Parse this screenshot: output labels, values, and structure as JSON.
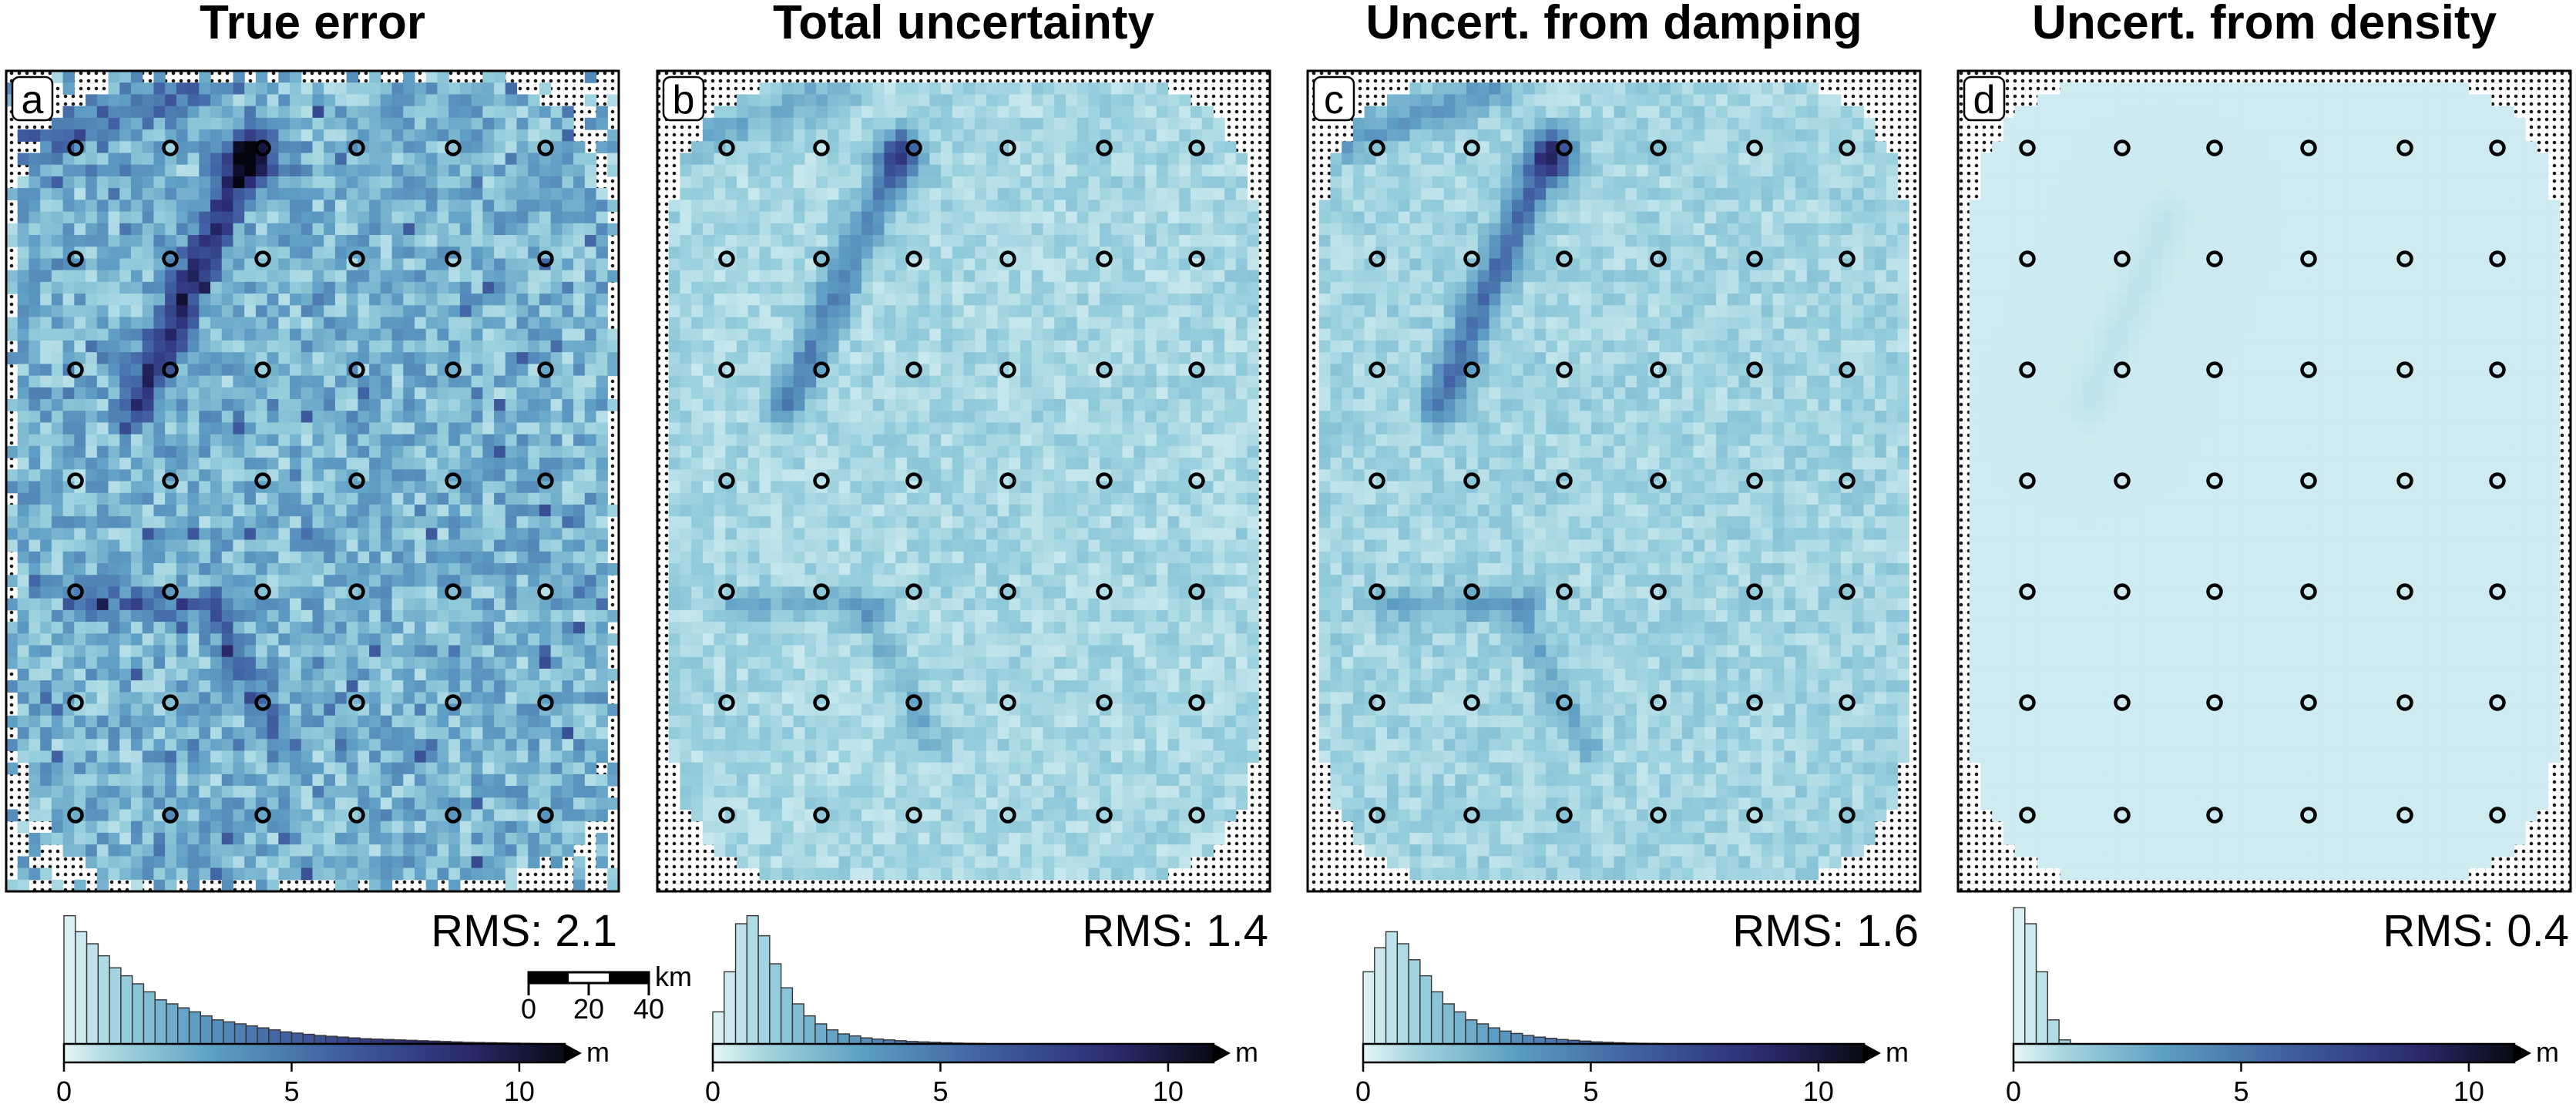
{
  "colors": {
    "map_light": "#e6f6f7",
    "map_mid": "#9fd0dd",
    "map_dark": "#2a2d7c",
    "hist_fill": "#cde9ee",
    "frame": "#000000"
  },
  "station_marker": "open-circle",
  "scalebar": {
    "ticks": [
      "0",
      "20",
      "40"
    ],
    "unit": "km"
  },
  "chart_data": [
    {
      "type": "heatmap",
      "panel": "a",
      "title": "True error",
      "rms_label": "RMS: 2.1",
      "colorbar": {
        "ticks": [
          "0",
          "5",
          "10"
        ],
        "unit": "m",
        "range": [
          0,
          11
        ]
      },
      "histogram": {
        "bin_width": 0.25,
        "counts": [
          32,
          28,
          25,
          22,
          19,
          17,
          15,
          13,
          11,
          10,
          9,
          8,
          7,
          6,
          5.5,
          5,
          4.5,
          4,
          3.5,
          3,
          2.7,
          2.4,
          2.1,
          1.9,
          1.7,
          1.5,
          1.3,
          1.2,
          1.1,
          1,
          0.9,
          0.8,
          0.7,
          0.6,
          0.5,
          0.4,
          0.35,
          0.3,
          0.25,
          0.2,
          0.15,
          0.1
        ]
      },
      "intensity_scale": 1.0
    },
    {
      "type": "heatmap",
      "panel": "b",
      "title": "Total uncertainty",
      "rms_label": "RMS: 1.4",
      "colorbar": {
        "ticks": [
          "0",
          "5",
          "10"
        ],
        "unit": "m",
        "range": [
          0,
          11
        ]
      },
      "histogram": {
        "bin_width": 0.25,
        "counts": [
          8,
          18,
          30,
          32,
          27,
          20,
          14,
          10,
          7,
          5,
          3.5,
          2.5,
          2,
          1.5,
          1.2,
          1,
          0.8,
          0.6,
          0.5,
          0.4,
          0.3,
          0.2,
          0.15,
          0.1
        ]
      },
      "intensity_scale": 0.8
    },
    {
      "type": "heatmap",
      "panel": "c",
      "title": "Uncert. from damping",
      "rms_label": "RMS: 1.6",
      "colorbar": {
        "ticks": [
          "0",
          "5",
          "10"
        ],
        "unit": "m",
        "range": [
          0,
          11
        ]
      },
      "histogram": {
        "bin_width": 0.25,
        "counts": [
          18,
          24,
          28,
          25,
          21,
          17,
          13,
          10,
          8,
          6,
          5,
          4,
          3.2,
          2.6,
          2.1,
          1.7,
          1.4,
          1.1,
          0.9,
          0.7,
          0.5,
          0.4,
          0.3,
          0.2,
          0.15,
          0.1
        ]
      },
      "intensity_scale": 0.9
    },
    {
      "type": "heatmap",
      "panel": "d",
      "title": "Uncert. from density",
      "rms_label": "RMS: 0.4",
      "colorbar": {
        "ticks": [
          "0",
          "5",
          "10"
        ],
        "unit": "m",
        "range": [
          0,
          11
        ]
      },
      "histogram": {
        "bin_width": 0.25,
        "counts": [
          34,
          30,
          18,
          6,
          1
        ]
      },
      "intensity_scale": 0.0
    }
  ]
}
